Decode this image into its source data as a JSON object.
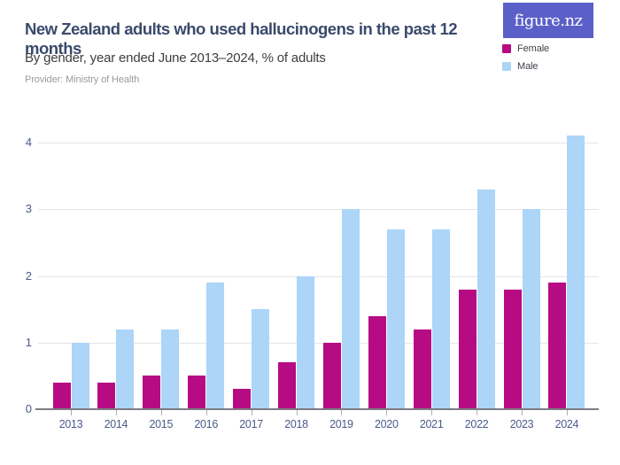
{
  "header": {
    "title": "New Zealand adults who used hallucinogens in the past 12 months",
    "subtitle": "By gender, year ended June 2013–2024, % of adults",
    "provider": "Provider: Ministry of Health"
  },
  "logo": {
    "text": "figure.nz",
    "background": "#5B5FC8",
    "text_color": "#FFFFFF"
  },
  "legend": {
    "position": "top-right",
    "items": [
      {
        "label": "Female",
        "color": "#B70B84"
      },
      {
        "label": "Male",
        "color": "#ACD5F8"
      }
    ]
  },
  "colors": {
    "title_text": "#3A4A6B",
    "axis_label_text": "#4A5B8A",
    "gridline": "#E5E5EA",
    "axis_line": "#7C7C82",
    "female_bar": "#B70B84",
    "male_bar": "#ACD5F8"
  },
  "chart_data": {
    "type": "bar",
    "title": "New Zealand adults who used hallucinogens in the past 12 months",
    "subtitle": "By gender, year ended June 2013–2024, % of adults",
    "categories": [
      "2013",
      "2014",
      "2015",
      "2016",
      "2017",
      "2018",
      "2019",
      "2020",
      "2021",
      "2022",
      "2023",
      "2024"
    ],
    "series": [
      {
        "name": "Female",
        "color": "#B70B84",
        "values": [
          0.4,
          0.4,
          0.5,
          0.5,
          0.3,
          0.7,
          1.0,
          1.4,
          1.2,
          1.8,
          1.8,
          1.9
        ]
      },
      {
        "name": "Male",
        "color": "#ACD5F8",
        "values": [
          1.0,
          1.2,
          1.2,
          1.9,
          1.5,
          2.0,
          3.0,
          2.7,
          2.7,
          3.3,
          3.0,
          4.1
        ]
      }
    ],
    "xlabel": "",
    "ylabel": "",
    "ylim": [
      0,
      4.2
    ],
    "yticks": [
      0,
      1,
      2,
      3,
      4
    ],
    "grid": true,
    "legend_position": "top-right"
  }
}
